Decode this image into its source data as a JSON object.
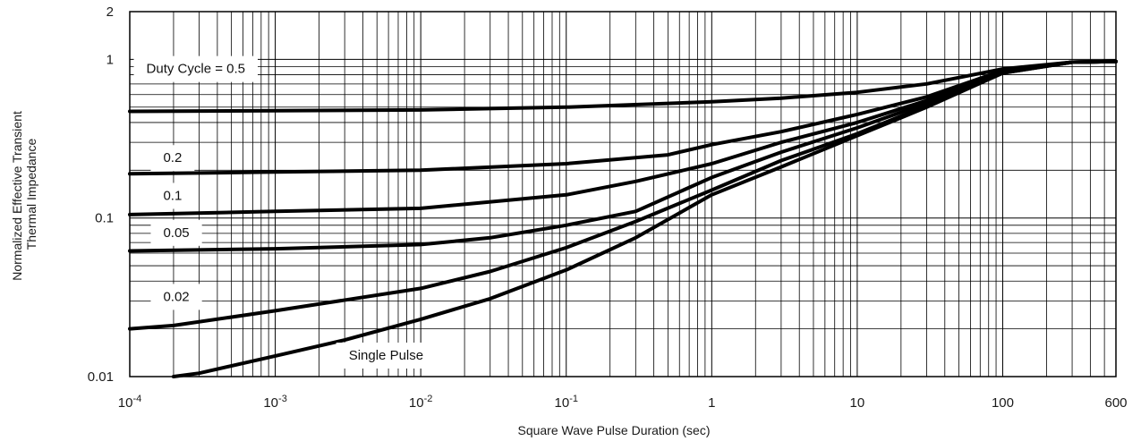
{
  "chart_data": {
    "type": "line",
    "xscale": "log",
    "yscale": "log",
    "xlim": [
      0.0001,
      600
    ],
    "ylim": [
      0.01,
      2
    ],
    "grid": true,
    "xlabel": "Square Wave Pulse Duration (sec)",
    "ylabel_lines": [
      "Normalized Effective Transient",
      "Thermal Impedance"
    ],
    "x_ticks": [
      {
        "value": 0.0001,
        "base": "10",
        "exp": "-4"
      },
      {
        "value": 0.001,
        "base": "10",
        "exp": "-3"
      },
      {
        "value": 0.01,
        "base": "10",
        "exp": "-2"
      },
      {
        "value": 0.1,
        "base": "10",
        "exp": "-1"
      },
      {
        "value": 1,
        "base": "1",
        "exp": ""
      },
      {
        "value": 10,
        "base": "10",
        "exp": ""
      },
      {
        "value": 100,
        "base": "100",
        "exp": ""
      },
      {
        "value": 600,
        "base": "600",
        "exp": ""
      }
    ],
    "y_ticks": [
      {
        "value": 0.01,
        "label": "0.01"
      },
      {
        "value": 0.1,
        "label": "0.1"
      },
      {
        "value": 1,
        "label": "1"
      },
      {
        "value": 2,
        "label": "2"
      }
    ],
    "series": [
      {
        "name": "Duty Cycle = 0.5",
        "x": [
          0.0001,
          0.001,
          0.01,
          0.1,
          1,
          3,
          10,
          30,
          100,
          300,
          600
        ],
        "y": [
          0.47,
          0.475,
          0.48,
          0.5,
          0.54,
          0.57,
          0.62,
          0.7,
          0.87,
          0.96,
          0.97
        ]
      },
      {
        "name": "0.2",
        "x": [
          0.0001,
          0.001,
          0.01,
          0.1,
          0.5,
          1,
          3,
          10,
          30,
          100,
          300,
          600
        ],
        "y": [
          0.19,
          0.195,
          0.2,
          0.22,
          0.25,
          0.29,
          0.35,
          0.45,
          0.58,
          0.85,
          0.96,
          0.97
        ]
      },
      {
        "name": "0.1",
        "x": [
          0.0001,
          0.001,
          0.01,
          0.1,
          0.3,
          1,
          3,
          10,
          30,
          100,
          300,
          600
        ],
        "y": [
          0.105,
          0.11,
          0.115,
          0.14,
          0.17,
          0.22,
          0.3,
          0.4,
          0.55,
          0.84,
          0.96,
          0.97
        ]
      },
      {
        "name": "0.05",
        "x": [
          0.0001,
          0.001,
          0.01,
          0.03,
          0.1,
          0.3,
          1,
          3,
          10,
          30,
          100,
          300,
          600
        ],
        "y": [
          0.062,
          0.064,
          0.068,
          0.075,
          0.09,
          0.11,
          0.18,
          0.26,
          0.37,
          0.53,
          0.83,
          0.96,
          0.97
        ]
      },
      {
        "name": "0.02",
        "x": [
          0.0001,
          0.0002,
          0.001,
          0.01,
          0.03,
          0.1,
          0.3,
          1,
          3,
          10,
          30,
          100,
          300,
          600
        ],
        "y": [
          0.02,
          0.021,
          0.026,
          0.036,
          0.046,
          0.065,
          0.095,
          0.15,
          0.23,
          0.34,
          0.51,
          0.82,
          0.96,
          0.97
        ]
      },
      {
        "name": "Single Pulse",
        "x": [
          0.0002,
          0.0003,
          0.001,
          0.003,
          0.01,
          0.03,
          0.1,
          0.3,
          1,
          3,
          10,
          30,
          100,
          300,
          600
        ],
        "y": [
          0.01,
          0.0105,
          0.0135,
          0.017,
          0.023,
          0.031,
          0.047,
          0.075,
          0.14,
          0.21,
          0.33,
          0.5,
          0.82,
          0.96,
          0.97
        ]
      }
    ],
    "labels": [
      {
        "text": "Duty Cycle = 0.5",
        "x": 0.00013,
        "y": 0.82
      },
      {
        "text": "0.2",
        "x": 0.00017,
        "y": 0.225
      },
      {
        "text": "0.1",
        "x": 0.00017,
        "y": 0.13
      },
      {
        "text": "0.05",
        "x": 0.00017,
        "y": 0.076
      },
      {
        "text": "0.02",
        "x": 0.00017,
        "y": 0.03
      },
      {
        "text": "Single Pulse",
        "x": 0.0032,
        "y": 0.0128
      }
    ]
  }
}
